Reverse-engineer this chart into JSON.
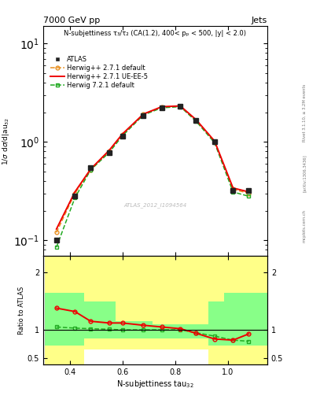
{
  "title_top": "7000 GeV pp",
  "title_right": "Jets",
  "annotation": "N-subjettiness τ₃/τ₂ (CA(1.2), 400< pₚ < 500, |y| < 2.0)",
  "watermark": "ATLAS_2012_I1094564",
  "right_label": "Rivet 3.1.10, ≥ 3.2M events",
  "arxiv_label": "[arXiv:1306.3436]",
  "mcplots_label": "mcplots.cern.ch",
  "ylabel_main": "1/σ dσ/dτ₃₂",
  "ylabel_ratio": "Ratio to ATLAS",
  "xlabel": "N-subjettiness tau₃₂",
  "x_data": [
    0.35,
    0.42,
    0.48,
    0.55,
    0.6,
    0.68,
    0.75,
    0.82,
    0.88,
    0.95,
    1.02,
    1.08
  ],
  "atlas_y": [
    0.1,
    0.28,
    0.55,
    0.78,
    1.15,
    1.85,
    2.2,
    2.3,
    1.65,
    1.0,
    0.32,
    0.32
  ],
  "herwig271_default_y": [
    0.12,
    0.3,
    0.52,
    0.8,
    1.18,
    1.9,
    2.25,
    2.3,
    1.65,
    1.0,
    0.33,
    0.3
  ],
  "herwig271_ueee5_y": [
    0.13,
    0.31,
    0.53,
    0.82,
    1.2,
    1.92,
    2.28,
    2.32,
    1.68,
    1.02,
    0.34,
    0.31
  ],
  "herwig721_default_y": [
    0.085,
    0.27,
    0.52,
    0.78,
    1.15,
    1.88,
    2.22,
    2.28,
    1.62,
    0.98,
    0.31,
    0.28
  ],
  "ratio_herwig271_ueee5": [
    1.38,
    1.32,
    1.15,
    1.12,
    1.12,
    1.08,
    1.05,
    1.02,
    0.94,
    0.84,
    0.82,
    0.93
  ],
  "ratio_herwig721_default": [
    1.05,
    1.03,
    1.02,
    1.01,
    1.0,
    1.0,
    1.0,
    1.0,
    0.95,
    0.89,
    0.82,
    0.8
  ],
  "color_atlas": "#222222",
  "color_herwig271_default": "#E89020",
  "color_herwig271_ueee5": "#EE0000",
  "color_herwig721_default": "#22AA22",
  "color_yellow": "#FFFF88",
  "color_green": "#88FF88",
  "xlim": [
    0.3,
    1.15
  ],
  "ylim_main_log": [
    0.07,
    15.0
  ],
  "ylim_ratio": [
    0.39,
    2.3
  ],
  "x_edges": [
    0.305,
    0.385,
    0.455,
    0.515,
    0.575,
    0.645,
    0.715,
    0.785,
    0.855,
    0.925,
    0.985,
    1.055,
    1.15
  ],
  "yellow_lo": [
    0.4,
    0.4,
    0.65,
    0.65,
    0.65,
    0.65,
    0.65,
    0.65,
    0.65,
    0.4,
    0.4,
    0.4
  ],
  "yellow_hi": [
    2.3,
    2.3,
    2.3,
    2.3,
    2.3,
    2.3,
    2.3,
    2.3,
    2.3,
    2.3,
    2.3,
    2.3
  ],
  "green_lo": [
    0.72,
    0.72,
    0.85,
    0.85,
    0.85,
    0.85,
    0.85,
    0.85,
    0.85,
    0.72,
    0.72,
    0.72
  ],
  "green_hi": [
    1.65,
    1.65,
    1.5,
    1.5,
    1.15,
    1.15,
    1.1,
    1.1,
    1.1,
    1.5,
    1.65,
    1.65
  ]
}
